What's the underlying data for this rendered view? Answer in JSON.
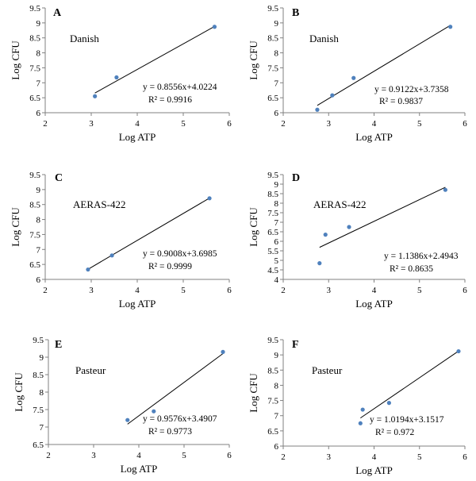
{
  "chart_data": [
    {
      "type": "scatter",
      "panel": "A",
      "label": "Danish",
      "xlabel": "Log ATP",
      "ylabel": "Log CFU",
      "xlim": [
        2,
        6
      ],
      "ylim": [
        6,
        9.5
      ],
      "xticks": [
        "2",
        "3",
        "4",
        "5",
        "6"
      ],
      "yticks": [
        "6",
        "6.5",
        "7",
        "7.5",
        "8",
        "8.5",
        "9",
        "9.5"
      ],
      "x": [
        3.08,
        3.55,
        5.68
      ],
      "y": [
        6.55,
        7.18,
        8.87
      ],
      "trendline": {
        "slope": 0.8556,
        "intercept": 4.0224,
        "x_range": [
          3.08,
          5.68
        ]
      },
      "equation": "y = 0.8556x+4.0224",
      "r2": "R² = 0.9916",
      "point_color": "#4f81bd"
    },
    {
      "type": "scatter",
      "panel": "B",
      "label": "Danish",
      "xlabel": "Log ATP",
      "ylabel": "Log CFU",
      "xlim": [
        2,
        6
      ],
      "ylim": [
        6,
        9.5
      ],
      "xticks": [
        "2",
        "3",
        "4",
        "5",
        "6"
      ],
      "yticks": [
        "6",
        "6.5",
        "7",
        "7.5",
        "8",
        "8.5",
        "9",
        "9.5"
      ],
      "x": [
        2.75,
        3.08,
        3.55,
        5.68
      ],
      "y": [
        6.1,
        6.58,
        7.16,
        8.87
      ],
      "trendline": {
        "slope": 0.9122,
        "intercept": 3.7358,
        "x_range": [
          2.75,
          5.68
        ]
      },
      "equation": "y = 0.9122x+3.7358",
      "r2": "R² = 0.9837",
      "point_color": "#4f81bd"
    },
    {
      "type": "scatter",
      "panel": "C",
      "label": "AERAS-422",
      "xlabel": "Log ATP",
      "ylabel": "Log CFU",
      "xlim": [
        2,
        6
      ],
      "ylim": [
        6,
        9.5
      ],
      "xticks": [
        "2",
        "3",
        "4",
        "5",
        "6"
      ],
      "yticks": [
        "6",
        "6.5",
        "7",
        "7.5",
        "8",
        "8.5",
        "9",
        "9.5"
      ],
      "x": [
        2.93,
        3.45,
        5.57
      ],
      "y": [
        6.33,
        6.8,
        8.71
      ],
      "trendline": {
        "slope": 0.9008,
        "intercept": 3.6985,
        "x_range": [
          2.93,
          5.57
        ]
      },
      "equation": "y = 0.9008x+3.6985",
      "r2": "R² = 0.9999",
      "point_color": "#4f81bd"
    },
    {
      "type": "scatter",
      "panel": "D",
      "label": "AERAS-422",
      "xlabel": "Log ATP",
      "ylabel": "Log CFU",
      "xlim": [
        2,
        6
      ],
      "ylim": [
        4,
        9.5
      ],
      "xticks": [
        "2",
        "3",
        "4",
        "5",
        "6"
      ],
      "yticks": [
        "4",
        "4.5",
        "5",
        "5.5",
        "6",
        "6.5",
        "7",
        "7.5",
        "8",
        "8.5",
        "9",
        "9.5"
      ],
      "x": [
        2.8,
        2.93,
        3.45,
        5.57
      ],
      "y": [
        4.85,
        6.35,
        6.75,
        8.7
      ],
      "trendline": {
        "slope": 1.1386,
        "intercept": 2.4943,
        "x_range": [
          2.8,
          5.57
        ]
      },
      "equation": "y = 1.1386x+2.4943",
      "r2": "R² = 0.8635",
      "point_color": "#4f81bd"
    },
    {
      "type": "scatter",
      "panel": "E",
      "label": "Pasteur",
      "xlabel": "Log ATP",
      "ylabel": "Log CFU",
      "xlim": [
        2,
        6
      ],
      "ylim": [
        6.5,
        9.5
      ],
      "xticks": [
        "2",
        "3",
        "4",
        "5",
        "6"
      ],
      "yticks": [
        "6.5",
        "7",
        "7.5",
        "8",
        "8.5",
        "9",
        "9.5"
      ],
      "x": [
        3.75,
        4.33,
        5.86
      ],
      "y": [
        7.2,
        7.45,
        9.15
      ],
      "trendline": {
        "slope": 0.9576,
        "intercept": 3.4907,
        "x_range": [
          3.75,
          5.86
        ]
      },
      "equation": "y = 0.9576x+3.4907",
      "r2": "R² = 0.9773",
      "point_color": "#4f81bd"
    },
    {
      "type": "scatter",
      "panel": "F",
      "label": "Pasteur",
      "xlabel": "Log ATP",
      "ylabel": "Log CFU",
      "xlim": [
        2,
        6
      ],
      "ylim": [
        6,
        9.5
      ],
      "xticks": [
        "2",
        "3",
        "4",
        "5",
        "6"
      ],
      "yticks": [
        "6",
        "6.5",
        "7",
        "7.5",
        "8",
        "8.5",
        "9",
        "9.5"
      ],
      "x": [
        3.7,
        3.75,
        4.33,
        5.86
      ],
      "y": [
        6.75,
        7.2,
        7.42,
        9.12
      ],
      "trendline": {
        "slope": 1.0194,
        "intercept": 3.1517,
        "x_range": [
          3.7,
          5.86
        ]
      },
      "equation": "y = 1.0194x+3.1517",
      "r2": "R² = 0.972",
      "point_color": "#4f81bd"
    }
  ]
}
